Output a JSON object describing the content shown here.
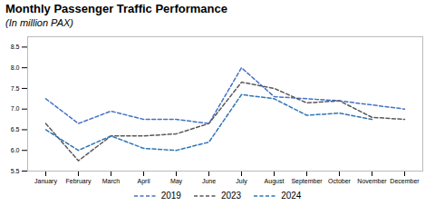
{
  "chart_data": {
    "type": "line",
    "title": "Monthly Passenger Traffic Performance",
    "subtitle": "(In million PAX)",
    "categories": [
      "January",
      "February",
      "March",
      "April",
      "May",
      "June",
      "July",
      "August",
      "September",
      "October",
      "November",
      "December"
    ],
    "series": [
      {
        "name": "2019",
        "color": "#4472C4",
        "line_style": "dashed",
        "values": [
          7.25,
          6.65,
          6.95,
          6.75,
          6.75,
          6.65,
          8.0,
          7.3,
          7.25,
          7.2,
          7.1,
          7.0
        ]
      },
      {
        "name": "2023",
        "color": "#595959",
        "line_style": "dashed",
        "values": [
          6.65,
          5.75,
          6.35,
          6.35,
          6.4,
          6.65,
          7.65,
          7.5,
          7.15,
          7.2,
          6.8,
          6.75
        ]
      },
      {
        "name": "2024",
        "color": "#2E75B6",
        "line_style": "dashed",
        "values": [
          6.5,
          6.0,
          6.35,
          6.05,
          6.0,
          6.2,
          7.35,
          7.25,
          6.85,
          6.9,
          6.75,
          null
        ]
      }
    ],
    "ylim": [
      5.5,
      8.75
    ],
    "yticks": [
      5.5,
      {
        "value": 6,
        "label": "6.0"
      },
      6.5,
      {
        "value": 7,
        "label": "7.0"
      },
      7.5,
      {
        "value": 8,
        "label": "8.0"
      },
      8.5
    ],
    "grid": false,
    "legend": "bottom"
  }
}
